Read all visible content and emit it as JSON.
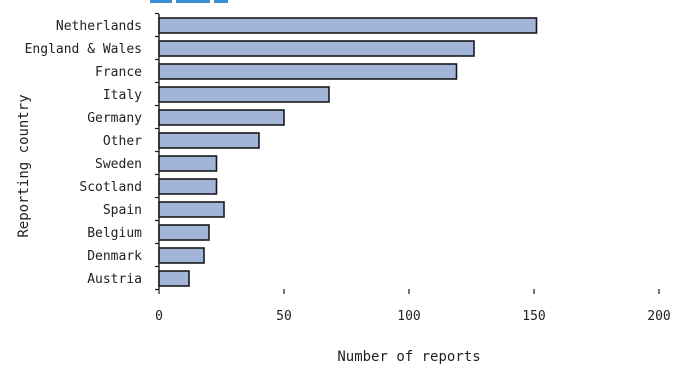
{
  "chart_data": {
    "type": "bar",
    "orientation": "horizontal",
    "categories": [
      "Netherlands",
      "England & Wales",
      "France",
      "Italy",
      "Germany",
      "Other",
      "Sweden",
      "Scotland",
      "Spain",
      "Belgium",
      "Denmark",
      "Austria"
    ],
    "values": [
      151,
      126,
      119,
      68,
      50,
      40,
      23,
      23,
      26,
      20,
      18,
      12
    ],
    "xlabel": "Number of reports",
    "ylabel": "Reporting country",
    "xlim": [
      0,
      200
    ],
    "xticks": [
      "0",
      "50",
      "100",
      "150",
      "200"
    ],
    "grid": false,
    "legend": "none",
    "colors": {
      "bar_fill": "#a3b4d9",
      "bar_stroke": "#1a1a1a",
      "title_fragment": "#3a8fd6"
    }
  }
}
